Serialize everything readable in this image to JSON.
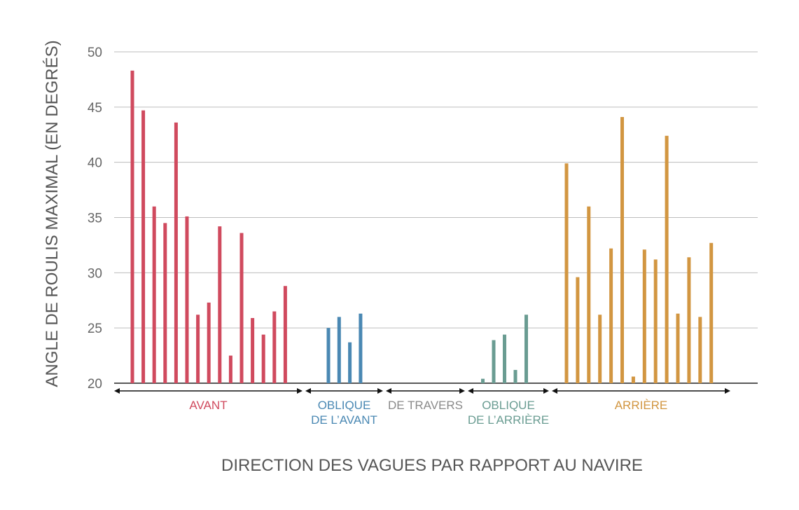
{
  "chart_data": {
    "type": "bar",
    "xlabel": "DIRECTION DES VAGUES PAR RAPPORT AU NAVIRE",
    "ylabel": "ANGLE DE ROULIS MAXIMAL (EN DEGRÉS)",
    "ylim": [
      20,
      50
    ],
    "yticks": [
      "20",
      "25",
      "30",
      "35",
      "40",
      "45",
      "50"
    ],
    "grid": true,
    "groups": [
      {
        "name_lines": [
          "AVANT"
        ],
        "color": "#d04a5e",
        "values": [
          48.3,
          44.7,
          36.0,
          34.5,
          43.6,
          35.1,
          26.2,
          27.3,
          34.2,
          22.5,
          33.6,
          25.9,
          24.4,
          26.5,
          28.8
        ]
      },
      {
        "name_lines": [
          "OBLIQUE",
          "DE L’AVANT"
        ],
        "color": "#4a88b3",
        "values": [
          25.0,
          26.0,
          23.7,
          26.3
        ]
      },
      {
        "name_lines": [
          "DE TRAVERS"
        ],
        "color": "#8a8a8a",
        "values": []
      },
      {
        "name_lines": [
          "OBLIQUE",
          "DE L’ARRIÈRE"
        ],
        "color": "#6a9c92",
        "values": [
          20.4,
          23.9,
          24.4,
          21.2,
          26.2
        ]
      },
      {
        "name_lines": [
          "ARRIÈRE"
        ],
        "color": "#d29641",
        "values": [
          39.9,
          29.6,
          36.0,
          26.2,
          32.2,
          44.1,
          20.6,
          32.1,
          31.2,
          42.4,
          26.3,
          31.4,
          26.0,
          32.7
        ]
      }
    ]
  }
}
